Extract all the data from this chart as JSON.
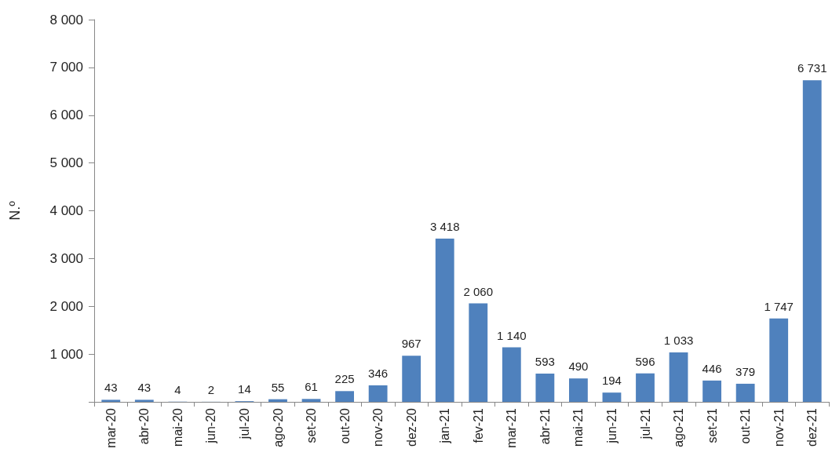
{
  "chart_data": {
    "type": "bar",
    "ylabel": "N.º",
    "categories": [
      "mar-20",
      "abr-20",
      "mai-20",
      "jun-20",
      "jul-20",
      "ago-20",
      "set-20",
      "out-20",
      "nov-20",
      "dez-20",
      "jan-21",
      "fev-21",
      "mar-21",
      "abr-21",
      "mai-21",
      "jun-21",
      "jul-21",
      "ago-21",
      "set-21",
      "out-21",
      "nov-21",
      "dez-21"
    ],
    "values": [
      43,
      43,
      4,
      2,
      14,
      55,
      61,
      225,
      346,
      967,
      3418,
      2060,
      1140,
      593,
      490,
      194,
      596,
      1033,
      446,
      379,
      1747,
      6731
    ],
    "value_labels": [
      "43",
      "43",
      "4",
      "2",
      "14",
      "55",
      "61",
      "225",
      "346",
      "967",
      "3 418",
      "2 060",
      "1 140",
      "593",
      "490",
      "194",
      "596",
      "1 033",
      "446",
      "379",
      "1 747",
      "6 731"
    ],
    "color": "#4f81bd",
    "ylim": [
      0,
      8000
    ],
    "yticks": [
      {
        "value": 0,
        "label": null
      },
      {
        "value": 1000,
        "label": "1 000"
      },
      {
        "value": 2000,
        "label": "2 000"
      },
      {
        "value": 3000,
        "label": "3 000"
      },
      {
        "value": 4000,
        "label": "4 000"
      },
      {
        "value": 5000,
        "label": "5 000"
      },
      {
        "value": 6000,
        "label": "6 000"
      },
      {
        "value": 7000,
        "label": "7 000"
      },
      {
        "value": 8000,
        "label": "8 000"
      }
    ],
    "grid": false
  }
}
